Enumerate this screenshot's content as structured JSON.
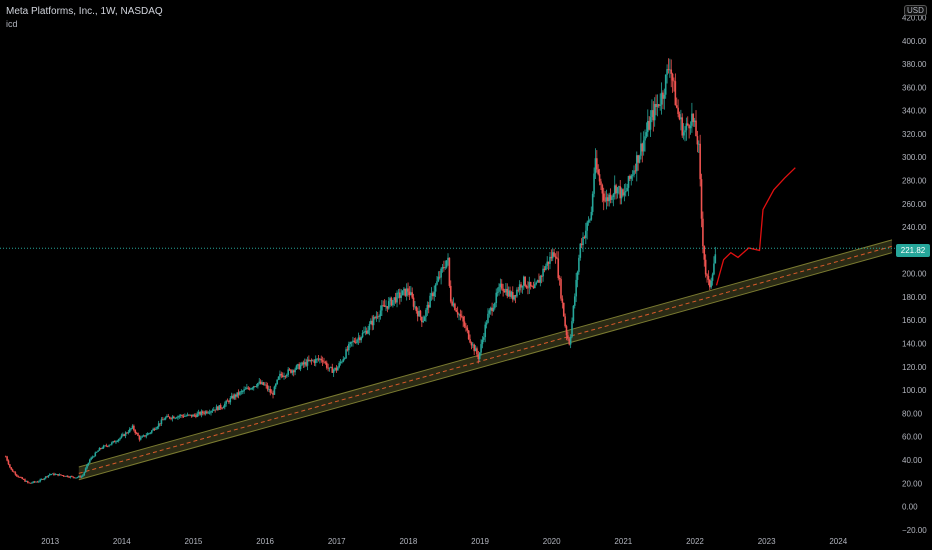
{
  "header": {
    "title": "Meta Platforms, Inc., 1W, NASDAQ",
    "subtitle": "icd"
  },
  "currency_label": "USD",
  "price_tag": "221.82",
  "colors": {
    "background": "#000000",
    "up": "#26a69a",
    "down": "#ef5350",
    "projection": "#e01010",
    "channel_fill": "#3a3a1c",
    "channel_edge": "#7a7a30",
    "channel_mid": "#d85a2a",
    "axis_text": "#b2b5be"
  },
  "chart_data": {
    "type": "candlestick",
    "title": "Meta Platforms, Inc., 1W, NASDAQ",
    "y_ticks": [
      -20,
      0,
      20,
      40,
      60,
      80,
      100,
      120,
      140,
      160,
      180,
      200,
      220,
      240,
      260,
      280,
      300,
      320,
      340,
      360,
      380,
      400,
      420
    ],
    "y_tick_labels": [
      "−20.00",
      "0.00",
      "20.00",
      "40.00",
      "60.00",
      "80.00",
      "100.00",
      "120.00",
      "140.00",
      "160.00",
      "180.00",
      "200.00",
      "220.00",
      "240.00",
      "260.00",
      "280.00",
      "300.00",
      "320.00",
      "340.00",
      "360.00",
      "380.00",
      "400.00",
      "420.00"
    ],
    "x_ticks": [
      2013,
      2014,
      2015,
      2016,
      2017,
      2018,
      2019,
      2020,
      2021,
      2022,
      2023,
      2024
    ],
    "x_tick_labels": [
      "2013",
      "2014",
      "2015",
      "2016",
      "2017",
      "2018",
      "2019",
      "2020",
      "2021",
      "2022",
      "2023",
      "2024"
    ],
    "ylim": [
      -27,
      435
    ],
    "xlim": [
      2012.3,
      2024.75
    ],
    "last_price": 221.82,
    "price_path": [
      [
        2012.38,
        43
      ],
      [
        2012.45,
        32
      ],
      [
        2012.55,
        26
      ],
      [
        2012.7,
        20
      ],
      [
        2012.85,
        22
      ],
      [
        2013.0,
        28
      ],
      [
        2013.15,
        27
      ],
      [
        2013.35,
        25
      ],
      [
        2013.45,
        26
      ],
      [
        2013.55,
        40
      ],
      [
        2013.7,
        50
      ],
      [
        2013.85,
        54
      ],
      [
        2014.0,
        60
      ],
      [
        2014.15,
        68
      ],
      [
        2014.25,
        58
      ],
      [
        2014.4,
        64
      ],
      [
        2014.6,
        76
      ],
      [
        2014.8,
        78
      ],
      [
        2015.0,
        78
      ],
      [
        2015.2,
        82
      ],
      [
        2015.4,
        86
      ],
      [
        2015.55,
        94
      ],
      [
        2015.75,
        101
      ],
      [
        2015.9,
        106
      ],
      [
        2016.0,
        104
      ],
      [
        2016.1,
        96
      ],
      [
        2016.2,
        112
      ],
      [
        2016.4,
        118
      ],
      [
        2016.6,
        124
      ],
      [
        2016.8,
        127
      ],
      [
        2016.9,
        117
      ],
      [
        2017.0,
        118
      ],
      [
        2017.2,
        140
      ],
      [
        2017.4,
        150
      ],
      [
        2017.6,
        168
      ],
      [
        2017.8,
        178
      ],
      [
        2018.0,
        186
      ],
      [
        2018.1,
        170
      ],
      [
        2018.2,
        160
      ],
      [
        2018.35,
        185
      ],
      [
        2018.55,
        214
      ],
      [
        2018.58,
        180
      ],
      [
        2018.75,
        160
      ],
      [
        2018.9,
        138
      ],
      [
        2018.98,
        128
      ],
      [
        2019.1,
        162
      ],
      [
        2019.3,
        190
      ],
      [
        2019.45,
        180
      ],
      [
        2019.6,
        194
      ],
      [
        2019.75,
        185
      ],
      [
        2019.9,
        205
      ],
      [
        2020.05,
        220
      ],
      [
        2020.2,
        150
      ],
      [
        2020.25,
        140
      ],
      [
        2020.4,
        225
      ],
      [
        2020.55,
        250
      ],
      [
        2020.6,
        295
      ],
      [
        2020.75,
        262
      ],
      [
        2020.9,
        275
      ],
      [
        2021.0,
        265
      ],
      [
        2021.2,
        300
      ],
      [
        2021.4,
        335
      ],
      [
        2021.55,
        355
      ],
      [
        2021.65,
        382
      ],
      [
        2021.75,
        340
      ],
      [
        2021.85,
        320
      ],
      [
        2021.95,
        336
      ],
      [
        2022.05,
        310
      ],
      [
        2022.1,
        235
      ],
      [
        2022.15,
        200
      ],
      [
        2022.2,
        188
      ],
      [
        2022.28,
        215
      ],
      [
        2022.3,
        221.82
      ]
    ],
    "projection_path": [
      [
        2022.3,
        190
      ],
      [
        2022.4,
        212
      ],
      [
        2022.5,
        218
      ],
      [
        2022.6,
        214
      ],
      [
        2022.75,
        222
      ],
      [
        2022.9,
        220
      ],
      [
        2022.95,
        255
      ],
      [
        2023.1,
        272
      ],
      [
        2023.25,
        282
      ],
      [
        2023.4,
        291
      ]
    ],
    "channel": {
      "lower_start": [
        2013.4,
        23
      ],
      "lower_end": [
        2024.75,
        218
      ],
      "upper_start": [
        2013.4,
        34
      ],
      "upper_end": [
        2024.75,
        229
      ]
    }
  }
}
